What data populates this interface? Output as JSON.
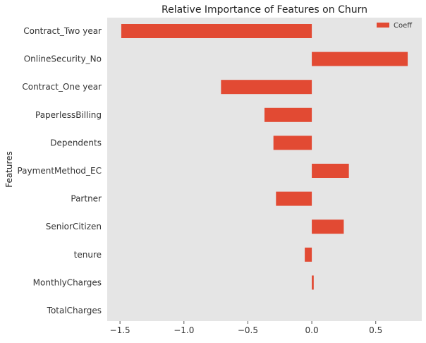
{
  "chart_data": {
    "type": "bar",
    "orientation": "horizontal",
    "title": "Relative Importance of Features on Churn",
    "xlabel": "",
    "ylabel": "Features",
    "categories": [
      "Contract_Two year",
      "OnlineSecurity_No",
      "Contract_One year",
      "PaperlessBilling",
      "Dependents",
      "PaymentMethod_EC",
      "Partner",
      "SeniorCitizen",
      "tenure",
      "MonthlyCharges",
      "TotalCharges"
    ],
    "series": [
      {
        "name": "Coeff",
        "values": [
          -1.49,
          0.75,
          -0.71,
          -0.37,
          -0.3,
          0.29,
          -0.28,
          0.25,
          -0.055,
          0.015,
          0.0
        ]
      }
    ],
    "xlim": [
      -1.6,
      0.86
    ],
    "xticks": [
      -1.5,
      -1.0,
      -0.5,
      0.0,
      0.5
    ],
    "xtick_labels": [
      "−1.5",
      "−1.0",
      "−0.5",
      "0.0",
      "0.5"
    ],
    "grid": false,
    "legend": {
      "position": "top-right"
    },
    "colors": {
      "bar": "#E24A33",
      "background": "#E5E5E5",
      "zero_line": "#FFFFFF"
    }
  }
}
